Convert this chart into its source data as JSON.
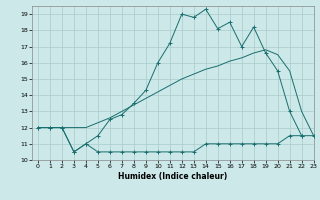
{
  "xlabel": "Humidex (Indice chaleur)",
  "bg_color": "#cce8e8",
  "grid_color": "#aacccc",
  "line_color": "#1a6e6e",
  "xlim": [
    -0.5,
    23
  ],
  "ylim": [
    10,
    19.5
  ],
  "xticks": [
    0,
    1,
    2,
    3,
    4,
    5,
    6,
    7,
    8,
    9,
    10,
    11,
    12,
    13,
    14,
    15,
    16,
    17,
    18,
    19,
    20,
    21,
    22,
    23
  ],
  "yticks": [
    10,
    11,
    12,
    13,
    14,
    15,
    16,
    17,
    18,
    19
  ],
  "line_min_x": [
    0,
    1,
    2,
    3,
    4,
    5,
    6,
    7,
    8,
    9,
    10,
    11,
    12,
    13,
    14,
    15,
    16,
    17,
    18,
    19,
    20,
    21,
    22,
    23
  ],
  "line_min_y": [
    12,
    12,
    12,
    10.5,
    11,
    10.5,
    10.5,
    10.5,
    10.5,
    10.5,
    10.5,
    10.5,
    10.5,
    10.5,
    11,
    11,
    11,
    11,
    11,
    11,
    11,
    11.5,
    11.5,
    11.5
  ],
  "line_avg_x": [
    0,
    1,
    2,
    3,
    4,
    5,
    6,
    7,
    8,
    9,
    10,
    11,
    12,
    13,
    14,
    15,
    16,
    17,
    18,
    19,
    20,
    21,
    22,
    23
  ],
  "line_avg_y": [
    12,
    12,
    12,
    12,
    12,
    12.3,
    12.6,
    13.0,
    13.4,
    13.8,
    14.2,
    14.6,
    15.0,
    15.3,
    15.6,
    15.8,
    16.1,
    16.3,
    16.6,
    16.8,
    16.5,
    15.5,
    13,
    11.5
  ],
  "line_max_x": [
    0,
    1,
    2,
    3,
    4,
    5,
    6,
    7,
    8,
    9,
    10,
    11,
    12,
    13,
    14,
    15,
    16,
    17,
    18,
    19,
    20,
    21,
    22
  ],
  "line_max_y": [
    12,
    12,
    12,
    10.5,
    11,
    11.5,
    12.5,
    12.8,
    13.5,
    14.3,
    16.0,
    17.2,
    19.0,
    18.8,
    19.3,
    18.1,
    18.5,
    17.0,
    18.2,
    16.6,
    15.5,
    13.0,
    11.5
  ]
}
